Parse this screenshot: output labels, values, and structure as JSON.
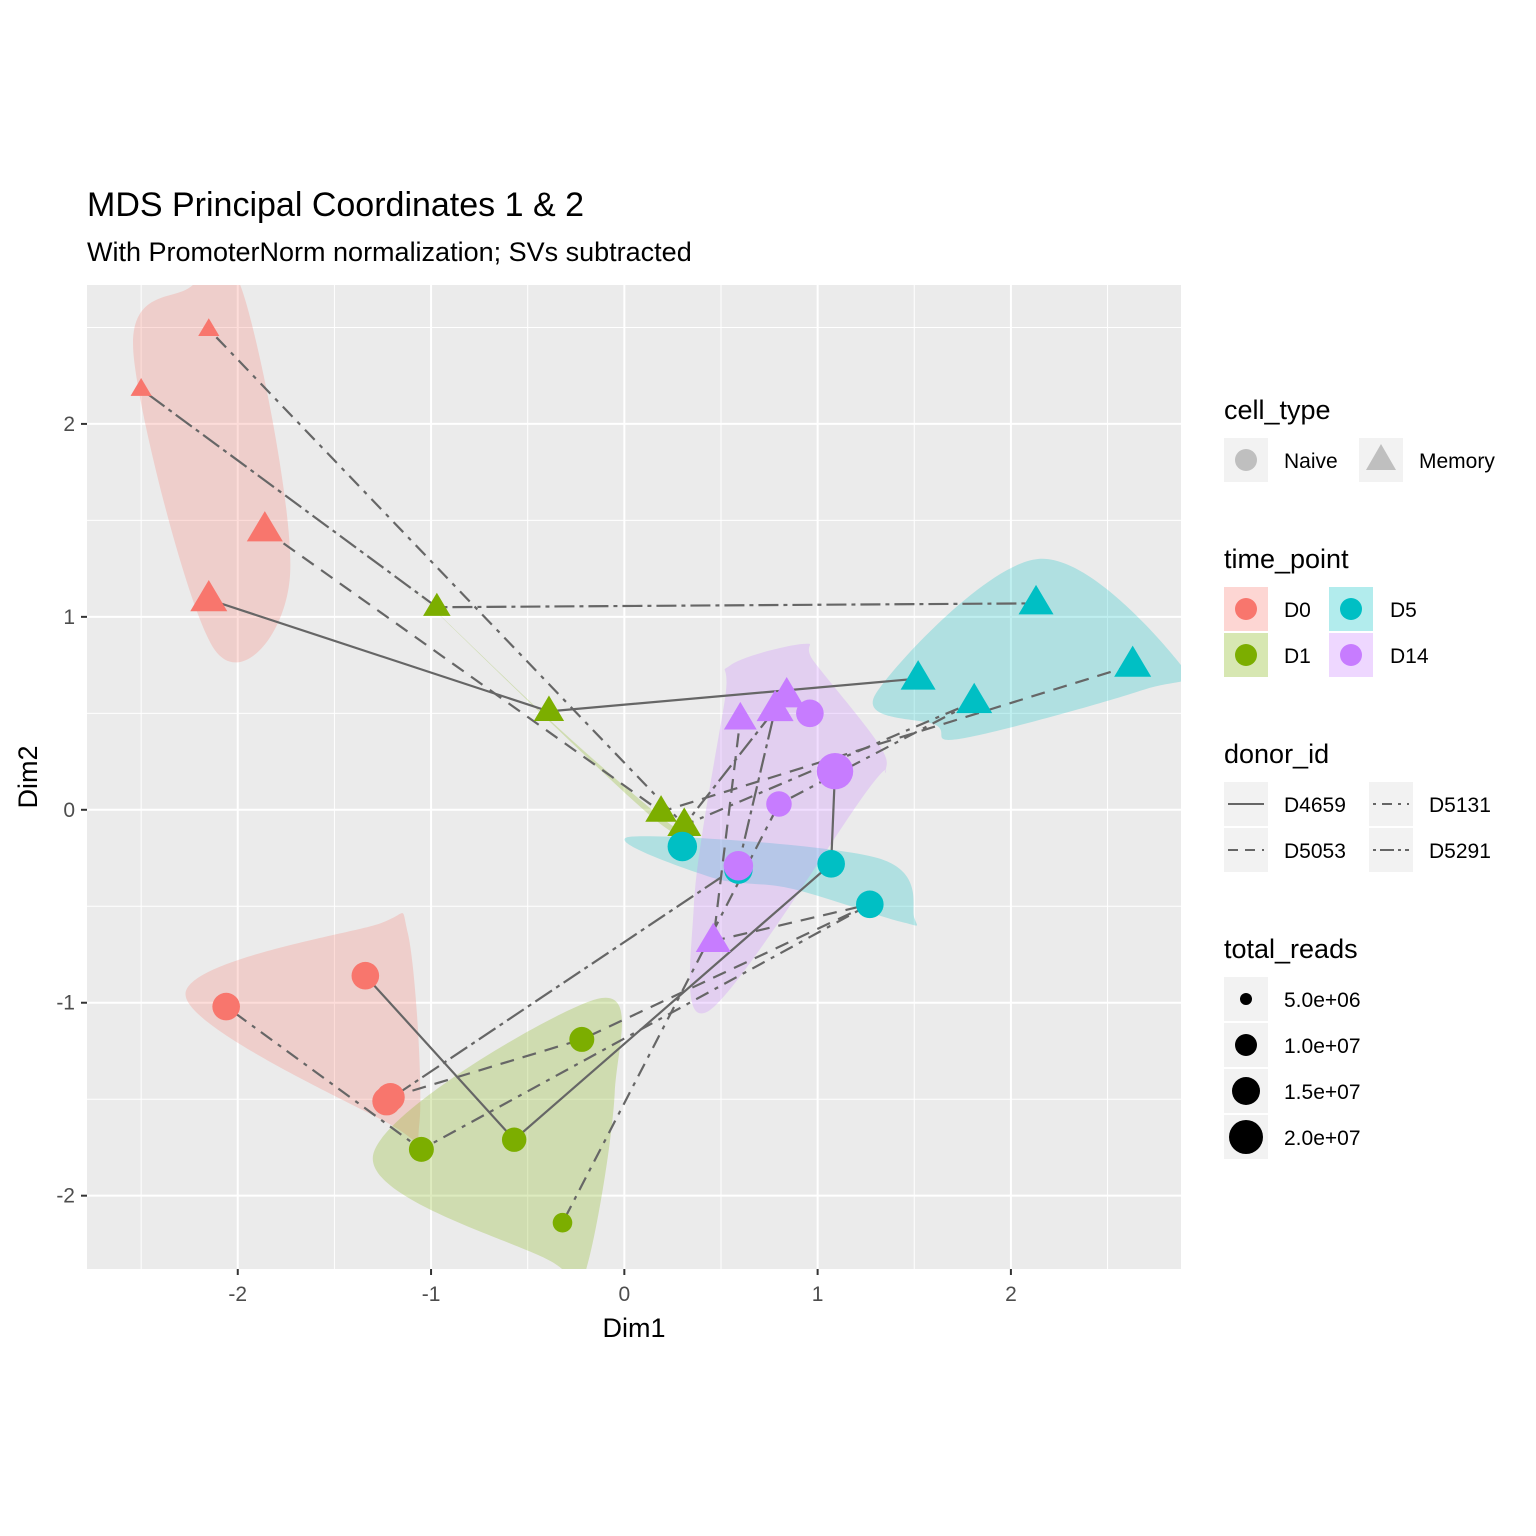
{
  "chart_data": {
    "type": "scatter",
    "title": "MDS Principal Coordinates 1 & 2",
    "subtitle": "With PromoterNorm normalization; SVs subtracted",
    "xlabel": "Dim1",
    "ylabel": "Dim2",
    "xlim": [
      -2.78,
      2.88
    ],
    "ylim": [
      -2.38,
      2.72
    ],
    "x_ticks": [
      -2,
      -1,
      0,
      1,
      2
    ],
    "x_tick_labels": [
      "-2",
      "-1",
      "0",
      "1",
      "2"
    ],
    "y_ticks": [
      -2,
      -1,
      0,
      1,
      2
    ],
    "y_tick_labels": [
      "-2",
      "-1",
      "0",
      "1",
      "2"
    ],
    "grid": true,
    "colors": {
      "D0": "#F8766D",
      "D1": "#7CAE00",
      "D5": "#00BFC4",
      "D14": "#C77CFF",
      "panel": "#EBEBEB",
      "grid": "#FFFFFF",
      "line": "#666666"
    },
    "points": [
      {
        "id": "D0-N-D4659",
        "x": -1.34,
        "y": -0.86,
        "time_point": "D0",
        "cell_type": "Naive",
        "donor_id": "D4659",
        "total_reads": 10000000.0
      },
      {
        "id": "D0-N-D5053",
        "x": -1.21,
        "y": -1.49,
        "time_point": "D0",
        "cell_type": "Naive",
        "donor_id": "D5053",
        "total_reads": 11000000.0
      },
      {
        "id": "D0-N-D5131",
        "x": -2.06,
        "y": -1.02,
        "time_point": "D0",
        "cell_type": "Naive",
        "donor_id": "D5131",
        "total_reads": 10000000.0
      },
      {
        "id": "D0-N-D5291",
        "x": -1.23,
        "y": -1.51,
        "time_point": "D0",
        "cell_type": "Naive",
        "donor_id": "D5291",
        "total_reads": 11000000.0
      },
      {
        "id": "D0-M-D4659",
        "x": -2.15,
        "y": 1.09,
        "time_point": "D0",
        "cell_type": "Memory",
        "donor_id": "D4659",
        "total_reads": 14000000.0
      },
      {
        "id": "D0-M-D5053",
        "x": -1.86,
        "y": 1.45,
        "time_point": "D0",
        "cell_type": "Memory",
        "donor_id": "D5053",
        "total_reads": 13000000.0
      },
      {
        "id": "D0-M-D5131",
        "x": -2.15,
        "y": 2.49,
        "time_point": "D0",
        "cell_type": "Memory",
        "donor_id": "D5131",
        "total_reads": 2500000.0
      },
      {
        "id": "D0-M-D5291",
        "x": -2.5,
        "y": 2.18,
        "time_point": "D0",
        "cell_type": "Memory",
        "donor_id": "D5291",
        "total_reads": 2500000.0
      },
      {
        "id": "D1-N-D4659",
        "x": -0.57,
        "y": -1.71,
        "time_point": "D1",
        "cell_type": "Naive",
        "donor_id": "D4659",
        "total_reads": 7000000.0
      },
      {
        "id": "D1-N-D5053",
        "x": -0.22,
        "y": -1.19,
        "time_point": "D1",
        "cell_type": "Naive",
        "donor_id": "D5053",
        "total_reads": 7500000.0
      },
      {
        "id": "D1-N-D5131",
        "x": -0.32,
        "y": -2.14,
        "time_point": "D1",
        "cell_type": "Naive",
        "donor_id": "D5131",
        "total_reads": 3500000.0
      },
      {
        "id": "D1-N-D5291",
        "x": -1.05,
        "y": -1.76,
        "time_point": "D1",
        "cell_type": "Naive",
        "donor_id": "D5291",
        "total_reads": 7500000.0
      },
      {
        "id": "D1-M-D4659",
        "x": -0.39,
        "y": 0.51,
        "time_point": "D1",
        "cell_type": "Memory",
        "donor_id": "D4659",
        "total_reads": 8000000.0
      },
      {
        "id": "D1-M-D5053",
        "x": 0.19,
        "y": -0.01,
        "time_point": "D1",
        "cell_type": "Memory",
        "donor_id": "D5053",
        "total_reads": 9000000.0
      },
      {
        "id": "D1-M-D5131",
        "x": 0.31,
        "y": -0.08,
        "time_point": "D1",
        "cell_type": "Memory",
        "donor_id": "D5131",
        "total_reads": 11000000.0
      },
      {
        "id": "D1-M-D5291",
        "x": -0.97,
        "y": 1.05,
        "time_point": "D1",
        "cell_type": "Memory",
        "donor_id": "D5291",
        "total_reads": 6000000.0
      },
      {
        "id": "D5-N-D4659",
        "x": 1.07,
        "y": -0.28,
        "time_point": "D5",
        "cell_type": "Naive",
        "donor_id": "D4659",
        "total_reads": 10000000.0
      },
      {
        "id": "D5-N-D5053",
        "x": 0.3,
        "y": -0.19,
        "time_point": "D5",
        "cell_type": "Naive",
        "donor_id": "D5053",
        "total_reads": 12000000.0
      },
      {
        "id": "D5-N-D5131",
        "x": 1.27,
        "y": -0.49,
        "time_point": "D5",
        "cell_type": "Naive",
        "donor_id": "D5131",
        "total_reads": 10000000.0
      },
      {
        "id": "D5-N-D5291",
        "x": 0.59,
        "y": -0.31,
        "time_point": "D5",
        "cell_type": "Naive",
        "donor_id": "D5291",
        "total_reads": 11000000.0
      },
      {
        "id": "D5-M-D4659",
        "x": 1.52,
        "y": 0.68,
        "time_point": "D5",
        "cell_type": "Memory",
        "donor_id": "D4659",
        "total_reads": 12000000.0
      },
      {
        "id": "D5-M-D5053",
        "x": 2.63,
        "y": 0.75,
        "time_point": "D5",
        "cell_type": "Memory",
        "donor_id": "D5053",
        "total_reads": 14000000.0
      },
      {
        "id": "D5-M-D5131",
        "x": 2.13,
        "y": 1.07,
        "time_point": "D5",
        "cell_type": "Memory",
        "donor_id": "D5131",
        "total_reads": 12000000.0
      },
      {
        "id": "D5-M-D5291",
        "x": 1.81,
        "y": 0.56,
        "time_point": "D5",
        "cell_type": "Memory",
        "donor_id": "D5291",
        "total_reads": 13000000.0
      },
      {
        "id": "D14-N-D4659",
        "x": 1.09,
        "y": 0.2,
        "time_point": "D14",
        "cell_type": "Naive",
        "donor_id": "D4659",
        "total_reads": 21000000.0
      },
      {
        "id": "D14-N-D5053",
        "x": 0.96,
        "y": 0.5,
        "time_point": "D14",
        "cell_type": "Naive",
        "donor_id": "D5053",
        "total_reads": 10000000.0
      },
      {
        "id": "D14-N-D5131",
        "x": 0.8,
        "y": 0.03,
        "time_point": "D14",
        "cell_type": "Naive",
        "donor_id": "D5131",
        "total_reads": 8000000.0
      },
      {
        "id": "D14-N-D5291",
        "x": 0.59,
        "y": -0.29,
        "time_point": "D14",
        "cell_type": "Naive",
        "donor_id": "D5291",
        "total_reads": 12000000.0
      },
      {
        "id": "D14-M-D4659",
        "x": 0.84,
        "y": 0.59,
        "time_point": "D14",
        "cell_type": "Memory",
        "donor_id": "D4659",
        "total_reads": 13000000.0
      },
      {
        "id": "D14-M-D5053",
        "x": 0.46,
        "y": -0.68,
        "time_point": "D14",
        "cell_type": "Memory",
        "donor_id": "D5053",
        "total_reads": 12000000.0
      },
      {
        "id": "D14-M-D5131",
        "x": 0.6,
        "y": 0.47,
        "time_point": "D14",
        "cell_type": "Memory",
        "donor_id": "D5131",
        "total_reads": 10000000.0
      },
      {
        "id": "D14-M-D5291",
        "x": 0.78,
        "y": 0.52,
        "time_point": "D14",
        "cell_type": "Memory",
        "donor_id": "D5291",
        "total_reads": 14000000.0
      }
    ],
    "hulls": [
      {
        "time_point": "D0",
        "points": [
          [
            -2.26,
            2.7
          ],
          [
            -1.98,
            2.7
          ],
          [
            -1.73,
            1.21
          ],
          [
            -2.12,
            0.83
          ],
          [
            -2.54,
            2.37
          ]
        ]
      },
      {
        "time_point": "D0",
        "points": [
          [
            -2.27,
            -0.96
          ],
          [
            -1.3,
            -0.6
          ],
          [
            -1.12,
            -0.64
          ],
          [
            -1.06,
            -1.62
          ],
          [
            -1.23,
            -1.62
          ]
        ]
      },
      {
        "time_point": "D1",
        "points": [
          [
            -1.3,
            -1.79
          ],
          [
            -0.14,
            -0.98
          ],
          [
            -0.05,
            -1.47
          ],
          [
            -0.21,
            -2.42
          ],
          [
            -0.38,
            -2.34
          ]
        ]
      },
      {
        "time_point": "D1",
        "points": [
          [
            -1.12,
            1.17
          ],
          [
            -0.4,
            0.47
          ],
          [
            0.17,
            -0.06
          ],
          [
            0.36,
            -0.15
          ],
          [
            0.18,
            -0.03
          ],
          [
            -0.38,
            0.46
          ]
        ]
      },
      {
        "time_point": "D5",
        "points": [
          [
            1.3,
            0.6
          ],
          [
            2.14,
            1.3
          ],
          [
            2.88,
            0.75
          ],
          [
            2.68,
            0.62
          ],
          [
            1.75,
            0.37
          ],
          [
            1.61,
            0.44
          ]
        ]
      },
      {
        "time_point": "D5",
        "points": [
          [
            0.03,
            -0.14
          ],
          [
            1.31,
            -0.25
          ],
          [
            1.5,
            -0.56
          ],
          [
            1.43,
            -0.58
          ],
          [
            0.87,
            -0.41
          ],
          [
            0.45,
            -0.35
          ]
        ]
      },
      {
        "time_point": "D14",
        "points": [
          [
            0.55,
            0.75
          ],
          [
            0.93,
            0.86
          ],
          [
            0.98,
            0.77
          ],
          [
            1.31,
            0.35
          ],
          [
            1.35,
            0.2
          ],
          [
            1.25,
            0.09
          ],
          [
            0.44,
            -1.04
          ],
          [
            0.36,
            -0.49
          ],
          [
            0.52,
            0.57
          ]
        ]
      }
    ],
    "trajectories": [
      {
        "donor_id": "D4659",
        "dash": "",
        "points": [
          [
            -2.15,
            1.09
          ],
          [
            -0.39,
            0.51
          ],
          [
            1.52,
            0.68
          ]
        ]
      },
      {
        "donor_id": "D4659",
        "dash": "",
        "points": [
          [
            -1.34,
            -0.86
          ],
          [
            -0.57,
            -1.71
          ],
          [
            1.07,
            -0.28
          ],
          [
            1.09,
            0.2
          ]
        ]
      },
      {
        "donor_id": "D5053",
        "dash": "14 9",
        "points": [
          [
            -1.86,
            1.45
          ],
          [
            0.19,
            -0.01
          ],
          [
            2.63,
            0.75
          ]
        ]
      },
      {
        "donor_id": "D5053",
        "dash": "14 9",
        "points": [
          [
            -1.21,
            -1.49
          ],
          [
            -0.22,
            -1.19
          ],
          [
            1.27,
            -0.49
          ],
          [
            0.46,
            -0.68
          ],
          [
            0.6,
            0.47
          ]
        ]
      },
      {
        "donor_id": "D5131",
        "dash": "4 7 14 7",
        "points": [
          [
            -2.15,
            2.49
          ],
          [
            0.31,
            -0.08
          ],
          [
            1.81,
            0.56
          ],
          [
            0.8,
            0.03
          ],
          [
            -0.32,
            -2.14
          ]
        ]
      },
      {
        "donor_id": "D5131",
        "dash": "4 7 14 7",
        "points": [
          [
            -2.06,
            -1.02
          ],
          [
            -1.05,
            -1.76
          ],
          [
            1.27,
            -0.49
          ]
        ]
      },
      {
        "donor_id": "D5291",
        "dash": "4 5 20 5",
        "points": [
          [
            -2.5,
            2.18
          ],
          [
            -0.97,
            1.05
          ],
          [
            2.13,
            1.07
          ]
        ]
      },
      {
        "donor_id": "D5291",
        "dash": "4 5 20 5",
        "points": [
          [
            -1.23,
            -1.51
          ],
          [
            0.59,
            -0.29
          ],
          [
            0.78,
            0.52
          ],
          [
            0.31,
            -0.08
          ]
        ]
      }
    ]
  },
  "legend": {
    "cell_type": {
      "title": "cell_type",
      "items": [
        {
          "label": "Naive",
          "shape": "circle"
        },
        {
          "label": "Memory",
          "shape": "triangle"
        }
      ]
    },
    "time_point": {
      "title": "time_point",
      "items": [
        {
          "label": "D0",
          "color": "#F8766D"
        },
        {
          "label": "D5",
          "color": "#00BFC4"
        },
        {
          "label": "D1",
          "color": "#7CAE00"
        },
        {
          "label": "D14",
          "color": "#C77CFF"
        }
      ]
    },
    "donor_id": {
      "title": "donor_id",
      "items": [
        {
          "label": "D4659",
          "dash": ""
        },
        {
          "label": "D5131",
          "dash": "3 6 10 6"
        },
        {
          "label": "D5053",
          "dash": "10 7"
        },
        {
          "label": "D5291",
          "dash": "3 4 14 4"
        }
      ]
    },
    "total_reads": {
      "title": "total_reads",
      "items": [
        {
          "label": "5.0e+06",
          "value": 5000000.0
        },
        {
          "label": "1.0e+07",
          "value": 10000000.0
        },
        {
          "label": "1.5e+07",
          "value": 15000000.0
        },
        {
          "label": "2.0e+07",
          "value": 20000000.0
        }
      ]
    }
  }
}
